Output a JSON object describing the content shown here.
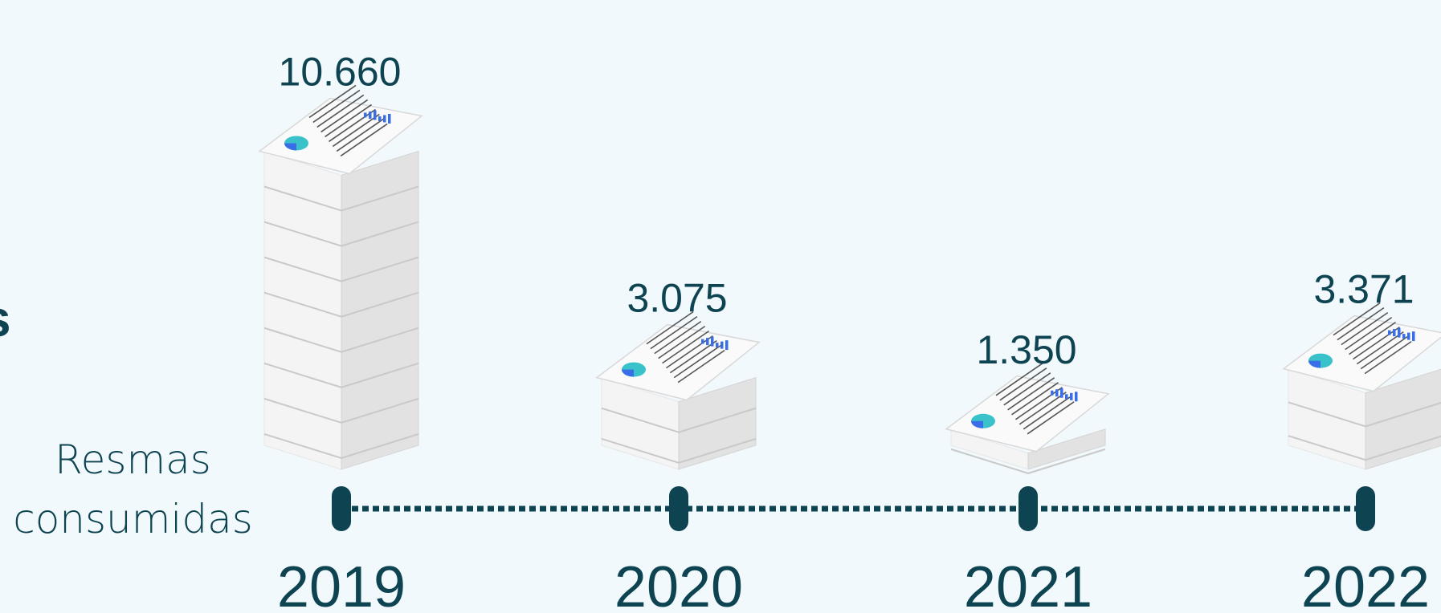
{
  "chart_data": {
    "type": "bar",
    "categories": [
      "2019",
      "2020",
      "2021",
      "2022"
    ],
    "values": [
      10660,
      3075,
      1350,
      3371
    ],
    "value_labels": [
      "10.660",
      "3.075",
      "1.350",
      "3.371"
    ],
    "ylabel_lines": [
      "Resmas",
      "consumidas"
    ],
    "cut_glyph": "s"
  },
  "colors": {
    "background": "#f2f9fc",
    "text": "#0e4452",
    "timeline": "#0e4452",
    "paper_light": "#f4f4f4",
    "paper_mid": "#e2e2e2",
    "paper_dark": "#c9c9c9",
    "accent_teal": "#39c2c9",
    "accent_blue": "#3a6ee8"
  }
}
